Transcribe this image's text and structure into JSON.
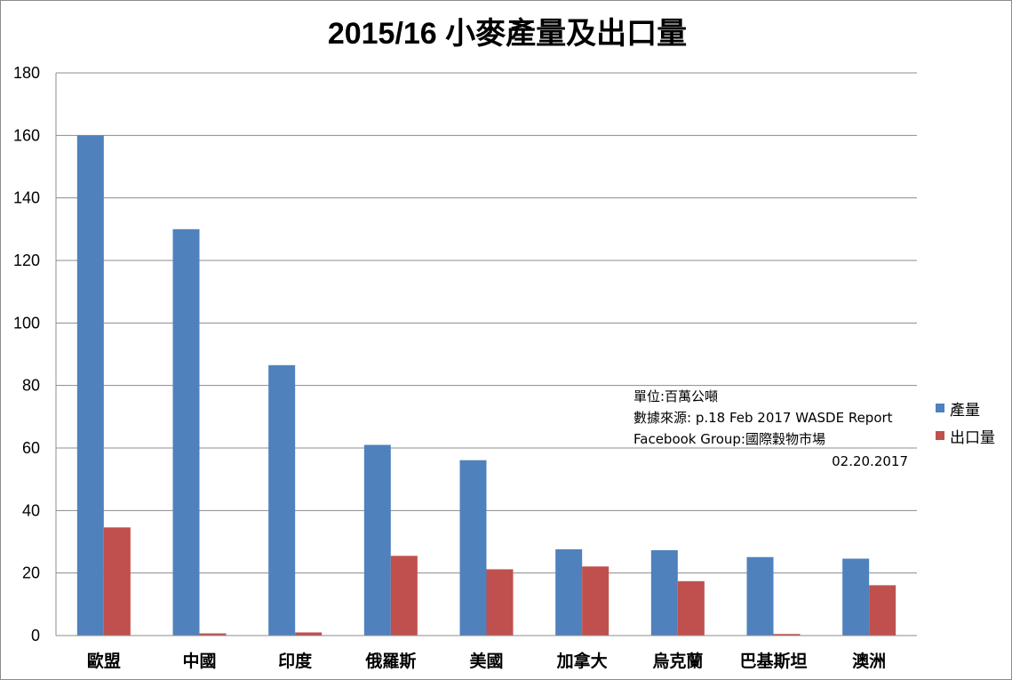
{
  "chart_data": {
    "type": "bar",
    "title": "2015/16 小麥產量及出口量",
    "xlabel": "",
    "ylabel": "",
    "ylim": [
      0,
      180
    ],
    "yticks": [
      0,
      20,
      40,
      60,
      80,
      100,
      120,
      140,
      160,
      180
    ],
    "grid": true,
    "legend_position": "right",
    "categories": [
      "歐盟",
      "中國",
      "印度",
      "俄羅斯",
      "美國",
      "加拿大",
      "烏克蘭",
      "巴基斯坦",
      "澳洲"
    ],
    "series": [
      {
        "name": "產量",
        "color": "#4f81bd",
        "values": [
          160.0,
          130.0,
          86.5,
          61.0,
          56.1,
          27.6,
          27.3,
          25.1,
          24.6
        ]
      },
      {
        "name": "出口量",
        "color": "#c0504d",
        "values": [
          34.6,
          0.7,
          1.0,
          25.5,
          21.2,
          22.1,
          17.4,
          0.5,
          16.1
        ]
      }
    ],
    "annotation": {
      "lines": [
        "單位:百萬公噸",
        "數據來源: p.18 Feb 2017 WASDE Report",
        "Facebook Group:國際穀物市場"
      ],
      "date": "02.20.2017"
    }
  }
}
